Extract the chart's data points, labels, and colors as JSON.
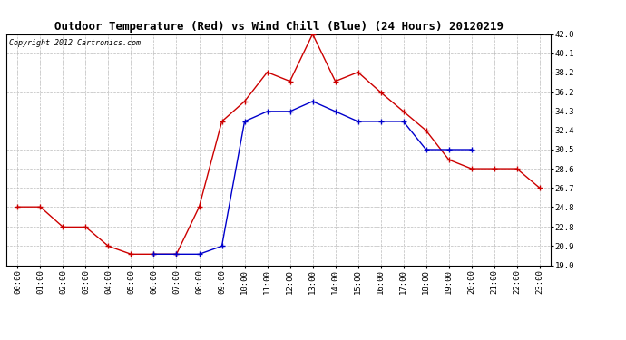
{
  "title": "Outdoor Temperature (Red) vs Wind Chill (Blue) (24 Hours) 20120219",
  "copyright_text": "Copyright 2012 Cartronics.com",
  "hours": [
    "00:00",
    "01:00",
    "02:00",
    "03:00",
    "04:00",
    "05:00",
    "06:00",
    "07:00",
    "08:00",
    "09:00",
    "10:00",
    "11:00",
    "12:00",
    "13:00",
    "14:00",
    "15:00",
    "16:00",
    "17:00",
    "18:00",
    "19:00",
    "20:00",
    "21:00",
    "22:00",
    "23:00"
  ],
  "red_values": [
    24.8,
    24.8,
    22.8,
    22.8,
    20.9,
    20.1,
    20.1,
    20.1,
    24.8,
    33.3,
    35.3,
    38.2,
    37.3,
    42.0,
    37.3,
    38.2,
    36.2,
    34.3,
    32.4,
    29.5,
    28.6,
    28.6,
    28.6,
    26.7
  ],
  "blue_values": [
    null,
    null,
    null,
    null,
    null,
    null,
    20.1,
    20.1,
    20.1,
    20.9,
    33.3,
    34.3,
    34.3,
    35.3,
    34.3,
    33.3,
    33.3,
    33.3,
    30.5,
    30.5,
    30.5,
    null,
    null,
    null
  ],
  "ylim": [
    19.0,
    42.0
  ],
  "yticks": [
    19.0,
    20.9,
    22.8,
    24.8,
    26.7,
    28.6,
    30.5,
    32.4,
    34.3,
    36.2,
    38.2,
    40.1,
    42.0
  ],
  "bg_color": "#ffffff",
  "plot_bg_color": "#ffffff",
  "grid_color": "#bbbbbb",
  "red_color": "#cc0000",
  "blue_color": "#0000cc",
  "title_fontsize": 9,
  "copyright_fontsize": 6,
  "tick_fontsize": 6.5
}
